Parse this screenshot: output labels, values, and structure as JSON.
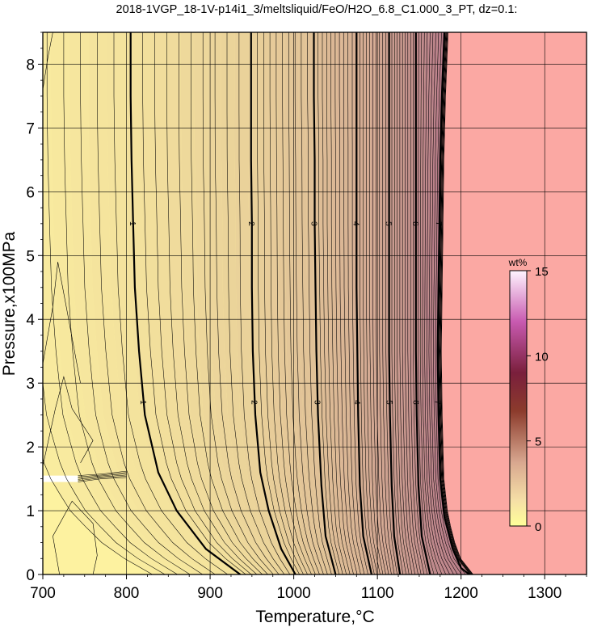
{
  "chart_data": {
    "type": "contour",
    "title": "2018-1VGP_18-1V-p14i1_3/meltsliquid/FeO/H2O_6.8_C1.000_3_PT, dz=0.1:",
    "xlabel": "Temperature,°C",
    "ylabel": "Pressure,x100MPa",
    "xlim": [
      700,
      1350
    ],
    "ylim": [
      0,
      8.5
    ],
    "x_ticks": [
      "700",
      "800",
      "900",
      "1000",
      "1100",
      "1200",
      "1300"
    ],
    "y_ticks": [
      "0",
      "1",
      "2",
      "3",
      "4",
      "5",
      "6",
      "7",
      "8"
    ],
    "grid": true,
    "contour_interval": 0.1,
    "major_contours": [
      {
        "level": "1",
        "points": [
          [
            936,
            0
          ],
          [
            895,
            0.4
          ],
          [
            860,
            1.0
          ],
          [
            838,
            1.6
          ],
          [
            822,
            2.5
          ],
          [
            815,
            3.5
          ],
          [
            810,
            4.5
          ],
          [
            808,
            5.5
          ],
          [
            806,
            6.5
          ],
          [
            805,
            7.5
          ],
          [
            805,
            8.5
          ]
        ]
      },
      {
        "level": "2",
        "points": [
          [
            1002,
            0
          ],
          [
            985,
            0.4
          ],
          [
            970,
            1.0
          ],
          [
            960,
            1.6
          ],
          [
            954,
            2.5
          ],
          [
            951,
            3.5
          ],
          [
            950,
            4.5
          ],
          [
            950,
            5.5
          ],
          [
            949,
            6.5
          ],
          [
            949,
            7.5
          ],
          [
            949,
            8.5
          ]
        ]
      },
      {
        "level": "3",
        "points": [
          [
            1050,
            0
          ],
          [
            1038,
            0.6
          ],
          [
            1033,
            1.4
          ],
          [
            1029,
            2.5
          ],
          [
            1027,
            3.5
          ],
          [
            1026,
            4.5
          ],
          [
            1025,
            5.5
          ],
          [
            1025,
            6.5
          ],
          [
            1024,
            7.5
          ],
          [
            1024,
            8.5
          ]
        ]
      },
      {
        "level": "4",
        "points": [
          [
            1093,
            0
          ],
          [
            1083,
            0.6
          ],
          [
            1079,
            1.4
          ],
          [
            1077,
            2.5
          ],
          [
            1076,
            3.5
          ],
          [
            1075,
            4.5
          ],
          [
            1075,
            5.5
          ],
          [
            1075,
            6.5
          ],
          [
            1075,
            7.5
          ],
          [
            1075,
            8.5
          ]
        ]
      },
      {
        "level": "5",
        "points": [
          [
            1127,
            0
          ],
          [
            1120,
            0.6
          ],
          [
            1117,
            1.4
          ],
          [
            1115,
            2.5
          ],
          [
            1114,
            3.5
          ],
          [
            1114,
            4.5
          ],
          [
            1114,
            5.5
          ],
          [
            1114,
            6.5
          ],
          [
            1114,
            7.5
          ],
          [
            1114,
            8.5
          ]
        ]
      },
      {
        "level": "6",
        "points": [
          [
            1163,
            0
          ],
          [
            1153,
            0.6
          ],
          [
            1149,
            1.4
          ],
          [
            1147,
            2.5
          ],
          [
            1146,
            3.5
          ],
          [
            1146,
            4.5
          ],
          [
            1146,
            5.5
          ],
          [
            1146,
            6.5
          ],
          [
            1146,
            7.5
          ],
          [
            1146,
            8.5
          ]
        ]
      },
      {
        "level": "7",
        "points": [
          [
            1210,
            0
          ],
          [
            1200,
            0.1
          ],
          [
            1190,
            0.4
          ],
          [
            1180,
            0.9
          ],
          [
            1175,
            1.5
          ],
          [
            1173,
            2.5
          ],
          [
            1172,
            3.5
          ],
          [
            1173,
            4.5
          ],
          [
            1174,
            5.5
          ],
          [
            1175,
            6.5
          ],
          [
            1177,
            7.5
          ],
          [
            1180,
            8.5
          ]
        ]
      }
    ],
    "colorbar": {
      "label": "wt%",
      "range": [
        0,
        15
      ],
      "ticks": [
        "0",
        "5",
        "10",
        "15"
      ],
      "colors": [
        "#ffff99",
        "#f7e0a8",
        "#cc9977",
        "#883322",
        "#aa2255",
        "#dd66cc",
        "#ffffff"
      ]
    },
    "fill_colors": {
      "low": "#fdf2a0",
      "high": "#b87c8a",
      "no_melt": "#fba8a3",
      "gap": "#ffffff"
    }
  }
}
